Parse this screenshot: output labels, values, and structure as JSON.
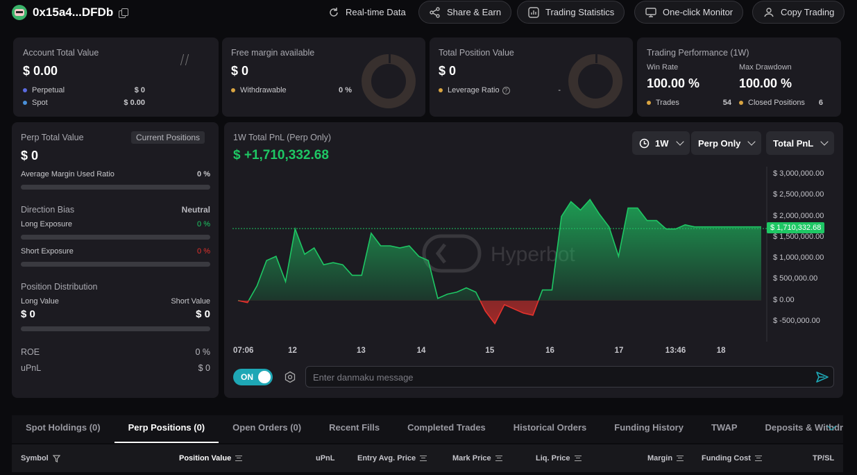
{
  "header": {
    "address": "0x15a4...DFDb",
    "buttons": [
      "Real-time Data",
      "Share & Earn",
      "Trading Statistics",
      "One-click Monitor",
      "Copy Trading"
    ]
  },
  "account": {
    "title": "Account Total Value",
    "value": "$ 0.00",
    "perpetual_label": "Perpetual",
    "perpetual_value": "$ 0",
    "spot_label": "Spot",
    "spot_value": "$ 0.00"
  },
  "margin": {
    "title": "Free margin available",
    "value": "$ 0",
    "withdrawable_label": "Withdrawable",
    "withdrawable_value": "0 %"
  },
  "position": {
    "title": "Total Position Value",
    "value": "$ 0",
    "leverage_label": "Leverage Ratio",
    "leverage_value": "-"
  },
  "performance": {
    "title": "Trading Performance (1W)",
    "win_rate_label": "Win Rate",
    "win_rate": "100.00 %",
    "drawdown_label": "Max Drawdown",
    "drawdown": "100.00 %",
    "trades_label": "Trades",
    "trades": "54",
    "closed_label": "Closed Positions",
    "closed": "6"
  },
  "perp": {
    "title": "Perp Total Value",
    "badge": "Current Positions",
    "value": "$ 0",
    "margin_ratio_label": "Average Margin Used Ratio",
    "margin_ratio": "0 %",
    "bias_label": "Direction Bias",
    "bias": "Neutral",
    "long_label": "Long Exposure",
    "long": "0 %",
    "short_label": "Short Exposure",
    "short": "0 %",
    "dist_label": "Position Distribution",
    "long_value_label": "Long Value",
    "long_value": "$ 0",
    "short_value_label": "Short Value",
    "short_value": "$ 0",
    "roe_label": "ROE",
    "roe": "0 %",
    "upnl_label": "uPnL",
    "upnl": "$ 0"
  },
  "pnl": {
    "title": "1W Total PnL (Perp Only)",
    "value": "$ +1,710,332.68",
    "selects": [
      "1W",
      "Perp Only",
      "Total PnL"
    ],
    "watermark": "Hyperbot",
    "toggle": "ON",
    "danmaku_placeholder": "Enter danmaku message"
  },
  "colors": {
    "green": "#1ec764",
    "red": "#e5322d",
    "accent": "#1ea7b5"
  },
  "chart_data": {
    "type": "area",
    "ylim": [
      -500000,
      3000000
    ],
    "yticks": [
      "$ 3,000,000.00",
      "$ 2,500,000.00",
      "$ 2,000,000.00",
      "$ 1,500,000.00",
      "$ 1,000,000.00",
      "$ 500,000.00",
      "$ 0.00",
      "$ -500,000.00"
    ],
    "xticks": [
      "07:06",
      "12",
      "13",
      "14",
      "15",
      "16",
      "17",
      "13:46",
      "18"
    ],
    "current_label": "$ 1,710,332.68",
    "current_value": 1710332.68,
    "values": [
      0,
      -50000,
      350000,
      950000,
      1050000,
      450000,
      1700000,
      1100000,
      1250000,
      850000,
      900000,
      850000,
      600000,
      600000,
      1600000,
      1300000,
      1300000,
      1250000,
      1300000,
      1050000,
      950000,
      50000,
      150000,
      200000,
      300000,
      200000,
      -250000,
      -550000,
      -100000,
      -200000,
      -300000,
      -350000,
      250000,
      250000,
      2000000,
      2350000,
      2150000,
      2400000,
      2050000,
      1750000,
      1050000,
      2200000,
      2200000,
      1900000,
      1900000,
      1700000,
      1700000,
      1800000,
      1750000,
      1750000,
      1750000,
      1750000,
      1750000,
      1750000,
      1750000,
      1750000
    ]
  },
  "tabs": [
    "Spot Holdings (0)",
    "Perp Positions (0)",
    "Open Orders (0)",
    "Recent Fills",
    "Completed Trades",
    "Historical Orders",
    "Funding History",
    "TWAP",
    "Deposits & Withdraw"
  ],
  "table_headers": [
    "Symbol",
    "Position Value",
    "uPnL",
    "Entry Avg. Price",
    "Mark Price",
    "Liq. Price",
    "Margin",
    "Funding Cost",
    "TP/SL"
  ]
}
